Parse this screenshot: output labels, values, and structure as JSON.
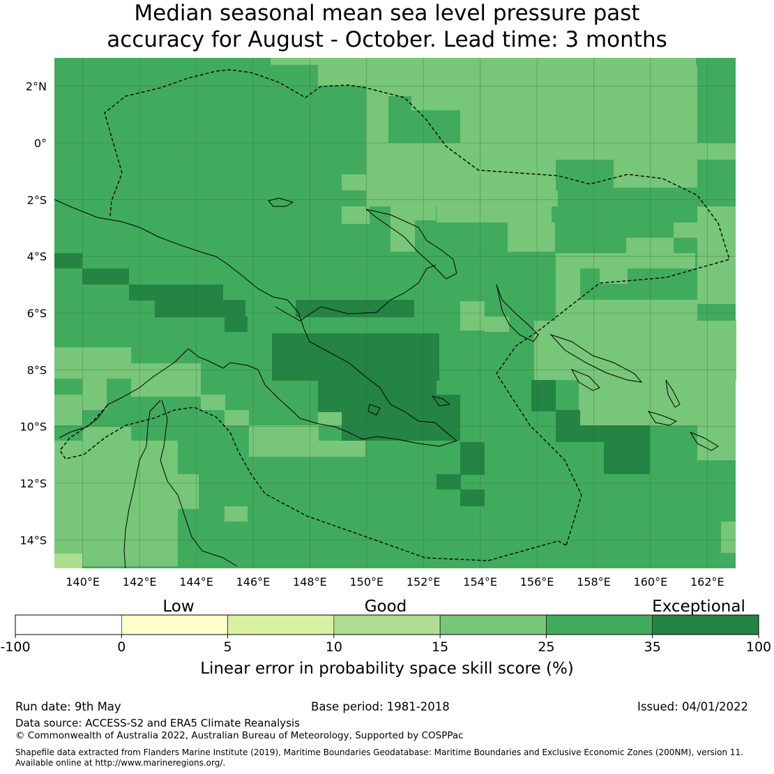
{
  "title": {
    "line1": "Median seasonal mean sea level pressure past",
    "line2": "accuracy for August - October. Lead time: 3 months"
  },
  "map": {
    "lon_range": [
      139,
      163
    ],
    "lat_range": [
      -15,
      3
    ],
    "lon_ticks": [
      "140°E",
      "142°E",
      "144°E",
      "146°E",
      "148°E",
      "150°E",
      "152°E",
      "154°E",
      "156°E",
      "158°E",
      "160°E",
      "162°E"
    ],
    "lat_ticks": [
      "2°N",
      "0°",
      "2°S",
      "4°S",
      "6°S",
      "8°S",
      "10°S",
      "12°S",
      "14°S"
    ],
    "grid": true
  },
  "legend": {
    "category_labels": [
      "Low",
      "Good",
      "Exceptional"
    ],
    "boundaries": [
      "-100",
      "0",
      "5",
      "10",
      "15",
      "25",
      "35",
      "100"
    ],
    "colors": [
      "#ffffff",
      "#ffffcc",
      "#d9f0a3",
      "#addd8e",
      "#78c679",
      "#41ab5d",
      "#238443"
    ],
    "axis_label": "Linear error in probability space skill score (%)"
  },
  "footer": {
    "run_date": "Run date: 9th May",
    "base_period": "Base period: 1981-2018",
    "issued": "Issued: 04/01/2022",
    "data_source": "Data source: ACCESS-S2 and ERA5 Climate Reanalysis",
    "copyright": "© Commonwealth of Australia 2022, Australian Bureau of Meteorology, Supported by COSPPac",
    "shapefile_line1": "Shapefile data extracted from Flanders Marine Institute (2019), Maritime Boundaries Geodatabase: Maritime Boundaries and Exclusive Economic Zones (200NM), version 11.",
    "shapefile_line2": "Available online at http://www.marineregions.org/."
  }
}
